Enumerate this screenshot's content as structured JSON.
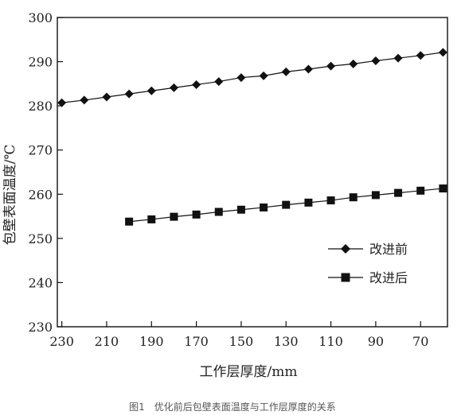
{
  "chart_data": {
    "type": "line",
    "title": "",
    "xlabel": "工作层厚度/mm",
    "ylabel": "包壁表面温度/℃",
    "xlim": [
      232,
      58
    ],
    "ylim": [
      230,
      300
    ],
    "x_reversed": true,
    "xticks": [
      230,
      210,
      190,
      170,
      150,
      130,
      110,
      90,
      70
    ],
    "yticks": [
      230,
      240,
      250,
      260,
      270,
      280,
      290,
      300
    ],
    "grid": false,
    "legend_position": "right-middle",
    "series": [
      {
        "name": "改进前",
        "marker": "diamond",
        "x": [
          230,
          220,
          210,
          200,
          190,
          180,
          170,
          160,
          150,
          140,
          130,
          120,
          110,
          100,
          90,
          80,
          70,
          60
        ],
        "y": [
          280.7,
          281.3,
          282.0,
          282.7,
          283.4,
          284.1,
          284.8,
          285.5,
          286.4,
          286.8,
          287.7,
          288.3,
          289.0,
          289.5,
          290.2,
          290.8,
          291.4,
          292.1
        ]
      },
      {
        "name": "改进后",
        "marker": "square",
        "x": [
          200,
          190,
          180,
          170,
          160,
          150,
          140,
          130,
          120,
          110,
          100,
          90,
          80,
          70,
          60
        ],
        "y": [
          253.8,
          254.3,
          254.9,
          255.4,
          256.0,
          256.5,
          257.0,
          257.6,
          258.1,
          258.6,
          259.3,
          259.8,
          260.3,
          260.8,
          261.3
        ]
      }
    ]
  },
  "caption": "图1　优化前后包壁表面温度与工作层厚度的关系",
  "colors": {
    "line": "#111111",
    "text": "#222222"
  }
}
